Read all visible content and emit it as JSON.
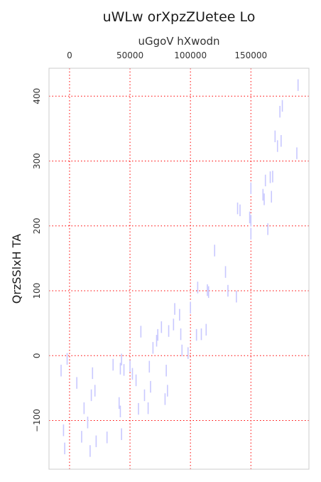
{
  "chart_data": {
    "type": "scatter",
    "marker": "vertical-line",
    "title": "uWLw orXpzZUetee Lo",
    "xlabel": "uGgoV hXwodn",
    "ylabel": "QrzSSlxH TA",
    "x_axis_position": "top",
    "xlim": [
      -17000,
      198000
    ],
    "ylim": [
      -175,
      443
    ],
    "xticks": [
      0,
      50000,
      100000,
      150000
    ],
    "xtick_labels": [
      "0",
      "50000",
      "100000",
      "150000"
    ],
    "yticks": [
      -100,
      0,
      100,
      200,
      300,
      400
    ],
    "ytick_labels": [
      "−100",
      "0",
      "100",
      "200",
      "300",
      "400"
    ],
    "grid": true,
    "grid_style": "dotted",
    "grid_color": "#ff0000",
    "marker_color": "#c8c8ff",
    "points": [
      [
        -7000,
        -23
      ],
      [
        -5000,
        -115
      ],
      [
        -4000,
        -143
      ],
      [
        -2000,
        -5
      ],
      [
        6000,
        -42
      ],
      [
        10000,
        -125
      ],
      [
        12000,
        -81
      ],
      [
        15000,
        -103
      ],
      [
        17000,
        -147
      ],
      [
        18000,
        -61
      ],
      [
        19000,
        -27
      ],
      [
        21000,
        -54
      ],
      [
        22000,
        -132
      ],
      [
        31000,
        -126
      ],
      [
        36000,
        -14
      ],
      [
        41000,
        -73
      ],
      [
        42000,
        -86
      ],
      [
        42000,
        -20
      ],
      [
        43000,
        -6
      ],
      [
        43000,
        -121
      ],
      [
        45000,
        -22
      ],
      [
        50000,
        -16
      ],
      [
        52000,
        -28
      ],
      [
        55000,
        -38
      ],
      [
        57000,
        -82
      ],
      [
        59000,
        37
      ],
      [
        62000,
        -61
      ],
      [
        65000,
        -81
      ],
      [
        66000,
        -17
      ],
      [
        67000,
        -48
      ],
      [
        69000,
        12
      ],
      [
        72000,
        23
      ],
      [
        73000,
        32
      ],
      [
        76000,
        44
      ],
      [
        79000,
        -67
      ],
      [
        80000,
        -23
      ],
      [
        81000,
        -54
      ],
      [
        82000,
        38
      ],
      [
        86000,
        48
      ],
      [
        87000,
        72
      ],
      [
        91000,
        63
      ],
      [
        92000,
        33
      ],
      [
        93000,
        8
      ],
      [
        98000,
        4
      ],
      [
        100000,
        74
      ],
      [
        105000,
        32
      ],
      [
        106000,
        105
      ],
      [
        109000,
        33
      ],
      [
        113000,
        40
      ],
      [
        114000,
        101
      ],
      [
        115000,
        98
      ],
      [
        120000,
        162
      ],
      [
        129000,
        129
      ],
      [
        131000,
        100
      ],
      [
        138000,
        91
      ],
      [
        139000,
        227
      ],
      [
        141000,
        224
      ],
      [
        149000,
        213
      ],
      [
        150000,
        208
      ],
      [
        150000,
        258
      ],
      [
        150000,
        188
      ],
      [
        160000,
        248
      ],
      [
        161000,
        241
      ],
      [
        162000,
        270
      ],
      [
        164000,
        195
      ],
      [
        166000,
        275
      ],
      [
        167000,
        245
      ],
      [
        168000,
        276
      ],
      [
        170000,
        338
      ],
      [
        172000,
        323
      ],
      [
        174000,
        376
      ],
      [
        175000,
        331
      ],
      [
        176000,
        385
      ],
      [
        188000,
        312
      ],
      [
        189000,
        417
      ]
    ]
  }
}
